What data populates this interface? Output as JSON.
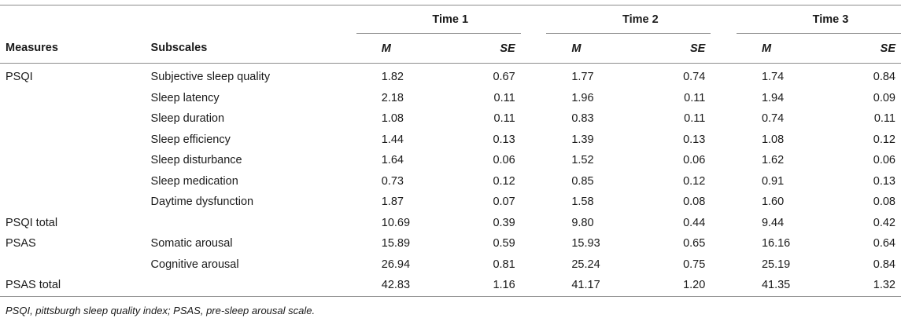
{
  "header": {
    "measures": "Measures",
    "subscales": "Subscales",
    "times": [
      "Time 1",
      "Time 2",
      "Time 3"
    ],
    "m": "M",
    "se": "SE"
  },
  "rows": [
    {
      "measure": "PSQI",
      "subscale": "Subjective sleep quality",
      "v": [
        "1.82",
        "0.67",
        "1.77",
        "0.74",
        "1.74",
        "0.84"
      ]
    },
    {
      "measure": "",
      "subscale": "Sleep latency",
      "v": [
        "2.18",
        "0.11",
        "1.96",
        "0.11",
        "1.94",
        "0.09"
      ]
    },
    {
      "measure": "",
      "subscale": "Sleep duration",
      "v": [
        "1.08",
        "0.11",
        "0.83",
        "0.11",
        "0.74",
        "0.11"
      ]
    },
    {
      "measure": "",
      "subscale": "Sleep efficiency",
      "v": [
        "1.44",
        "0.13",
        "1.39",
        "0.13",
        "1.08",
        "0.12"
      ]
    },
    {
      "measure": "",
      "subscale": "Sleep disturbance",
      "v": [
        "1.64",
        "0.06",
        "1.52",
        "0.06",
        "1.62",
        "0.06"
      ]
    },
    {
      "measure": "",
      "subscale": "Sleep medication",
      "v": [
        "0.73",
        "0.12",
        "0.85",
        "0.12",
        "0.91",
        "0.13"
      ]
    },
    {
      "measure": "",
      "subscale": "Daytime dysfunction",
      "v": [
        "1.87",
        "0.07",
        "1.58",
        "0.08",
        "1.60",
        "0.08"
      ]
    },
    {
      "measure": "PSQI total",
      "subscale": "",
      "v": [
        "10.69",
        "0.39",
        "9.80",
        "0.44",
        "9.44",
        "0.42"
      ]
    },
    {
      "measure": "PSAS",
      "subscale": "Somatic arousal",
      "v": [
        "15.89",
        "0.59",
        "15.93",
        "0.65",
        "16.16",
        "0.64"
      ]
    },
    {
      "measure": "",
      "subscale": "Cognitive arousal",
      "v": [
        "26.94",
        "0.81",
        "25.24",
        "0.75",
        "25.19",
        "0.84"
      ]
    },
    {
      "measure": "PSAS total",
      "subscale": "",
      "v": [
        "42.83",
        "1.16",
        "41.17",
        "1.20",
        "41.35",
        "1.32"
      ]
    }
  ],
  "footnote": "PSQI, pittsburgh sleep quality index; PSAS, pre-sleep arousal scale."
}
